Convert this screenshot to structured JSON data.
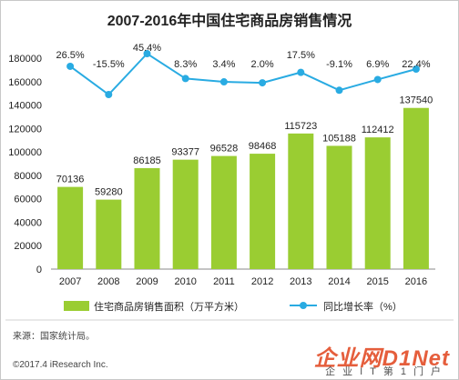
{
  "chart_data": {
    "type": "bar+line",
    "title": "2007-2016年中国住宅商品房销售情况",
    "categories": [
      "2007",
      "2008",
      "2009",
      "2010",
      "2011",
      "2012",
      "2013",
      "2014",
      "2015",
      "2016"
    ],
    "series": [
      {
        "name": "住宅商品房销售面积（万平方米）",
        "type": "bar",
        "color": "#9acd32",
        "values": [
          70136,
          59280,
          86185,
          93377,
          96528,
          98468,
          115723,
          105188,
          112412,
          137540
        ],
        "labels": [
          "70136",
          "59280",
          "86185",
          "93377",
          "96528",
          "98468",
          "115723",
          "105188",
          "112412",
          "137540"
        ]
      },
      {
        "name": "同比增长率（%）",
        "type": "line",
        "color": "#29abe2",
        "values": [
          26.5,
          -15.5,
          45.4,
          8.3,
          3.4,
          2.0,
          17.5,
          -9.1,
          6.9,
          22.4
        ],
        "labels": [
          "26.5%",
          "-15.5%",
          "45.4%",
          "8.3%",
          "3.4%",
          "2.0%",
          "17.5%",
          "-9.1%",
          "6.9%",
          "22.4%"
        ]
      }
    ],
    "y_ticks": [
      "0",
      "20000",
      "40000",
      "60000",
      "80000",
      "100000",
      "120000",
      "140000",
      "160000",
      "180000"
    ],
    "ylim": [
      0,
      180000
    ],
    "grid": false,
    "legend_position": "bottom"
  },
  "footer": {
    "source": "来源：国家统计局。",
    "copyright": "©2017.4 iResearch Inc."
  },
  "watermark": {
    "main": "企业网D1Net",
    "sub": "企业IT第1门户"
  }
}
